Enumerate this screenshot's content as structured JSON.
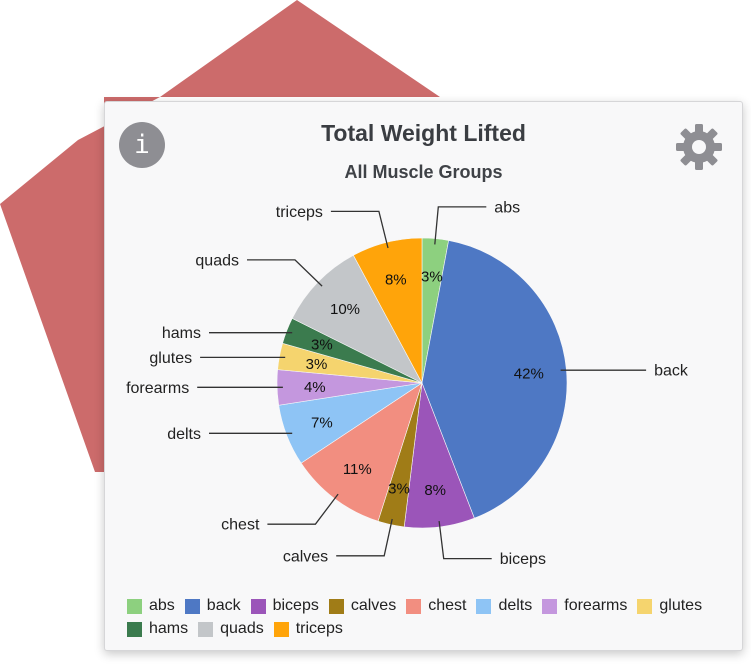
{
  "card": {
    "title": "Total Weight Lifted",
    "subtitle": "All Muscle Groups",
    "info_icon": "info-icon",
    "info_label": "i",
    "settings_icon": "gear-icon"
  },
  "colors": {
    "background_shape": "#cc6b6b",
    "card_background": "#f8f8f9",
    "info_button": "#8e8e93",
    "gear": "#8e8e93"
  },
  "chart_data": {
    "type": "pie",
    "title": "Total Weight Lifted",
    "subtitle": "All Muscle Groups",
    "legend_position": "bottom",
    "slices": [
      {
        "name": "abs",
        "value": 3,
        "label": "3%",
        "color": "#8dd07f"
      },
      {
        "name": "back",
        "value": 42,
        "label": "42%",
        "color": "#4e78c4"
      },
      {
        "name": "biceps",
        "value": 8,
        "label": "8%",
        "color": "#9b55b9"
      },
      {
        "name": "calves",
        "value": 3,
        "label": "3%",
        "color": "#a07c17"
      },
      {
        "name": "chest",
        "value": 11,
        "label": "11%",
        "color": "#f28e80"
      },
      {
        "name": "delts",
        "value": 7,
        "label": "7%",
        "color": "#8ec4f5"
      },
      {
        "name": "forearms",
        "value": 4,
        "label": "4%",
        "color": "#c497de"
      },
      {
        "name": "glutes",
        "value": 3,
        "label": "3%",
        "color": "#f5d46e"
      },
      {
        "name": "hams",
        "value": 3,
        "label": "3%",
        "color": "#3b7b4e"
      },
      {
        "name": "quads",
        "value": 10,
        "label": "10%",
        "color": "#c3c6c9"
      },
      {
        "name": "triceps",
        "value": 8,
        "label": "8%",
        "color": "#ffa40a"
      }
    ]
  }
}
